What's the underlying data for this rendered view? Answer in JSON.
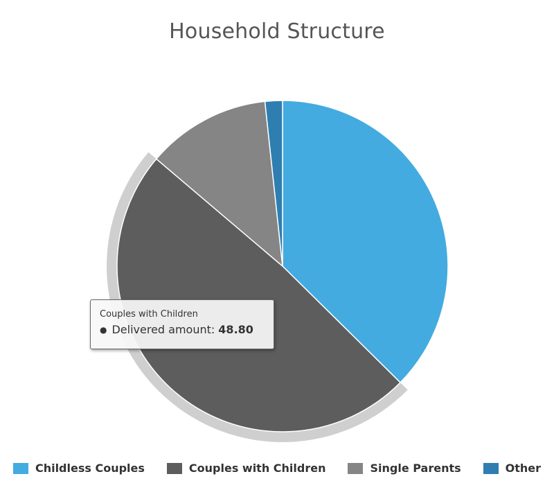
{
  "chart_data": {
    "type": "pie",
    "title": "Household Structure",
    "series_label": "Delivered amount",
    "categories": [
      "Childless Couples",
      "Couples with Children",
      "Single Parents",
      "Other"
    ],
    "values": [
      37.4,
      48.8,
      12.1,
      1.7
    ],
    "colors": [
      "#43abe0",
      "#5d5d5d",
      "#858585",
      "#2f7eb1"
    ],
    "highlighted_index": 1,
    "legend_position": "bottom-center"
  },
  "tooltip": {
    "title": "Couples with Children",
    "label": "Delivered amount:",
    "value": "48.80"
  }
}
